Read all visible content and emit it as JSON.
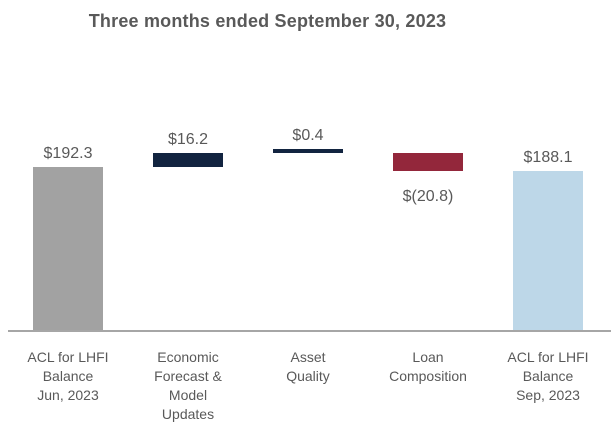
{
  "chart": {
    "title": "Three months ended September 30, 2023"
  },
  "colors": {
    "background": "#FFFFFF",
    "title_text": "#595959",
    "label_text": "#595959",
    "axis_line": "#A6A6A6",
    "bar_total_start": "#A2A2A2",
    "bar_increase": "#122440",
    "bar_decrease": "#93273B",
    "bar_total_end": "#BDD7E8"
  },
  "chart_data": {
    "type": "bar",
    "subtype": "waterfall",
    "title": "Three months ended September 30, 2023",
    "xlabel": "",
    "ylabel": "",
    "ylim": [
      0,
      215
    ],
    "grid": false,
    "legend": false,
    "categories": [
      "ACL for LHFI Balance Jun, 2023",
      "Economic Forecast & Model Updates",
      "Asset Quality",
      "Loan Composition",
      "ACL for LHFI Balance Sep, 2023"
    ],
    "bars": [
      {
        "category": "ACL for LHFI Balance Jun, 2023",
        "category_lines": [
          "ACL for LHFI",
          "Balance",
          "Jun, 2023"
        ],
        "value": 192.3,
        "label": "$192.3",
        "role": "total",
        "color": "#A2A2A2",
        "label_position": "above"
      },
      {
        "category": "Economic Forecast & Model Updates",
        "category_lines": [
          "Economic",
          "Forecast &",
          "Model",
          "Updates"
        ],
        "value": 16.2,
        "label": "$16.2",
        "role": "delta",
        "color": "#122440",
        "label_position": "above"
      },
      {
        "category": "Asset Quality",
        "category_lines": [
          "Asset",
          "Quality"
        ],
        "value": 0.4,
        "label": "$0.4",
        "role": "delta",
        "color": "#122440",
        "label_position": "above"
      },
      {
        "category": "Loan Composition",
        "category_lines": [
          "Loan",
          "Composition"
        ],
        "value": -20.8,
        "label": "$(20.8)",
        "role": "delta",
        "color": "#93273B",
        "label_position": "below"
      },
      {
        "category": "ACL for LHFI Balance Sep, 2023",
        "category_lines": [
          "ACL for LHFI",
          "Balance",
          "Sep, 2023"
        ],
        "value": 188.1,
        "label": "$188.1",
        "role": "total",
        "color": "#BDD7E8",
        "label_position": "above"
      }
    ]
  }
}
